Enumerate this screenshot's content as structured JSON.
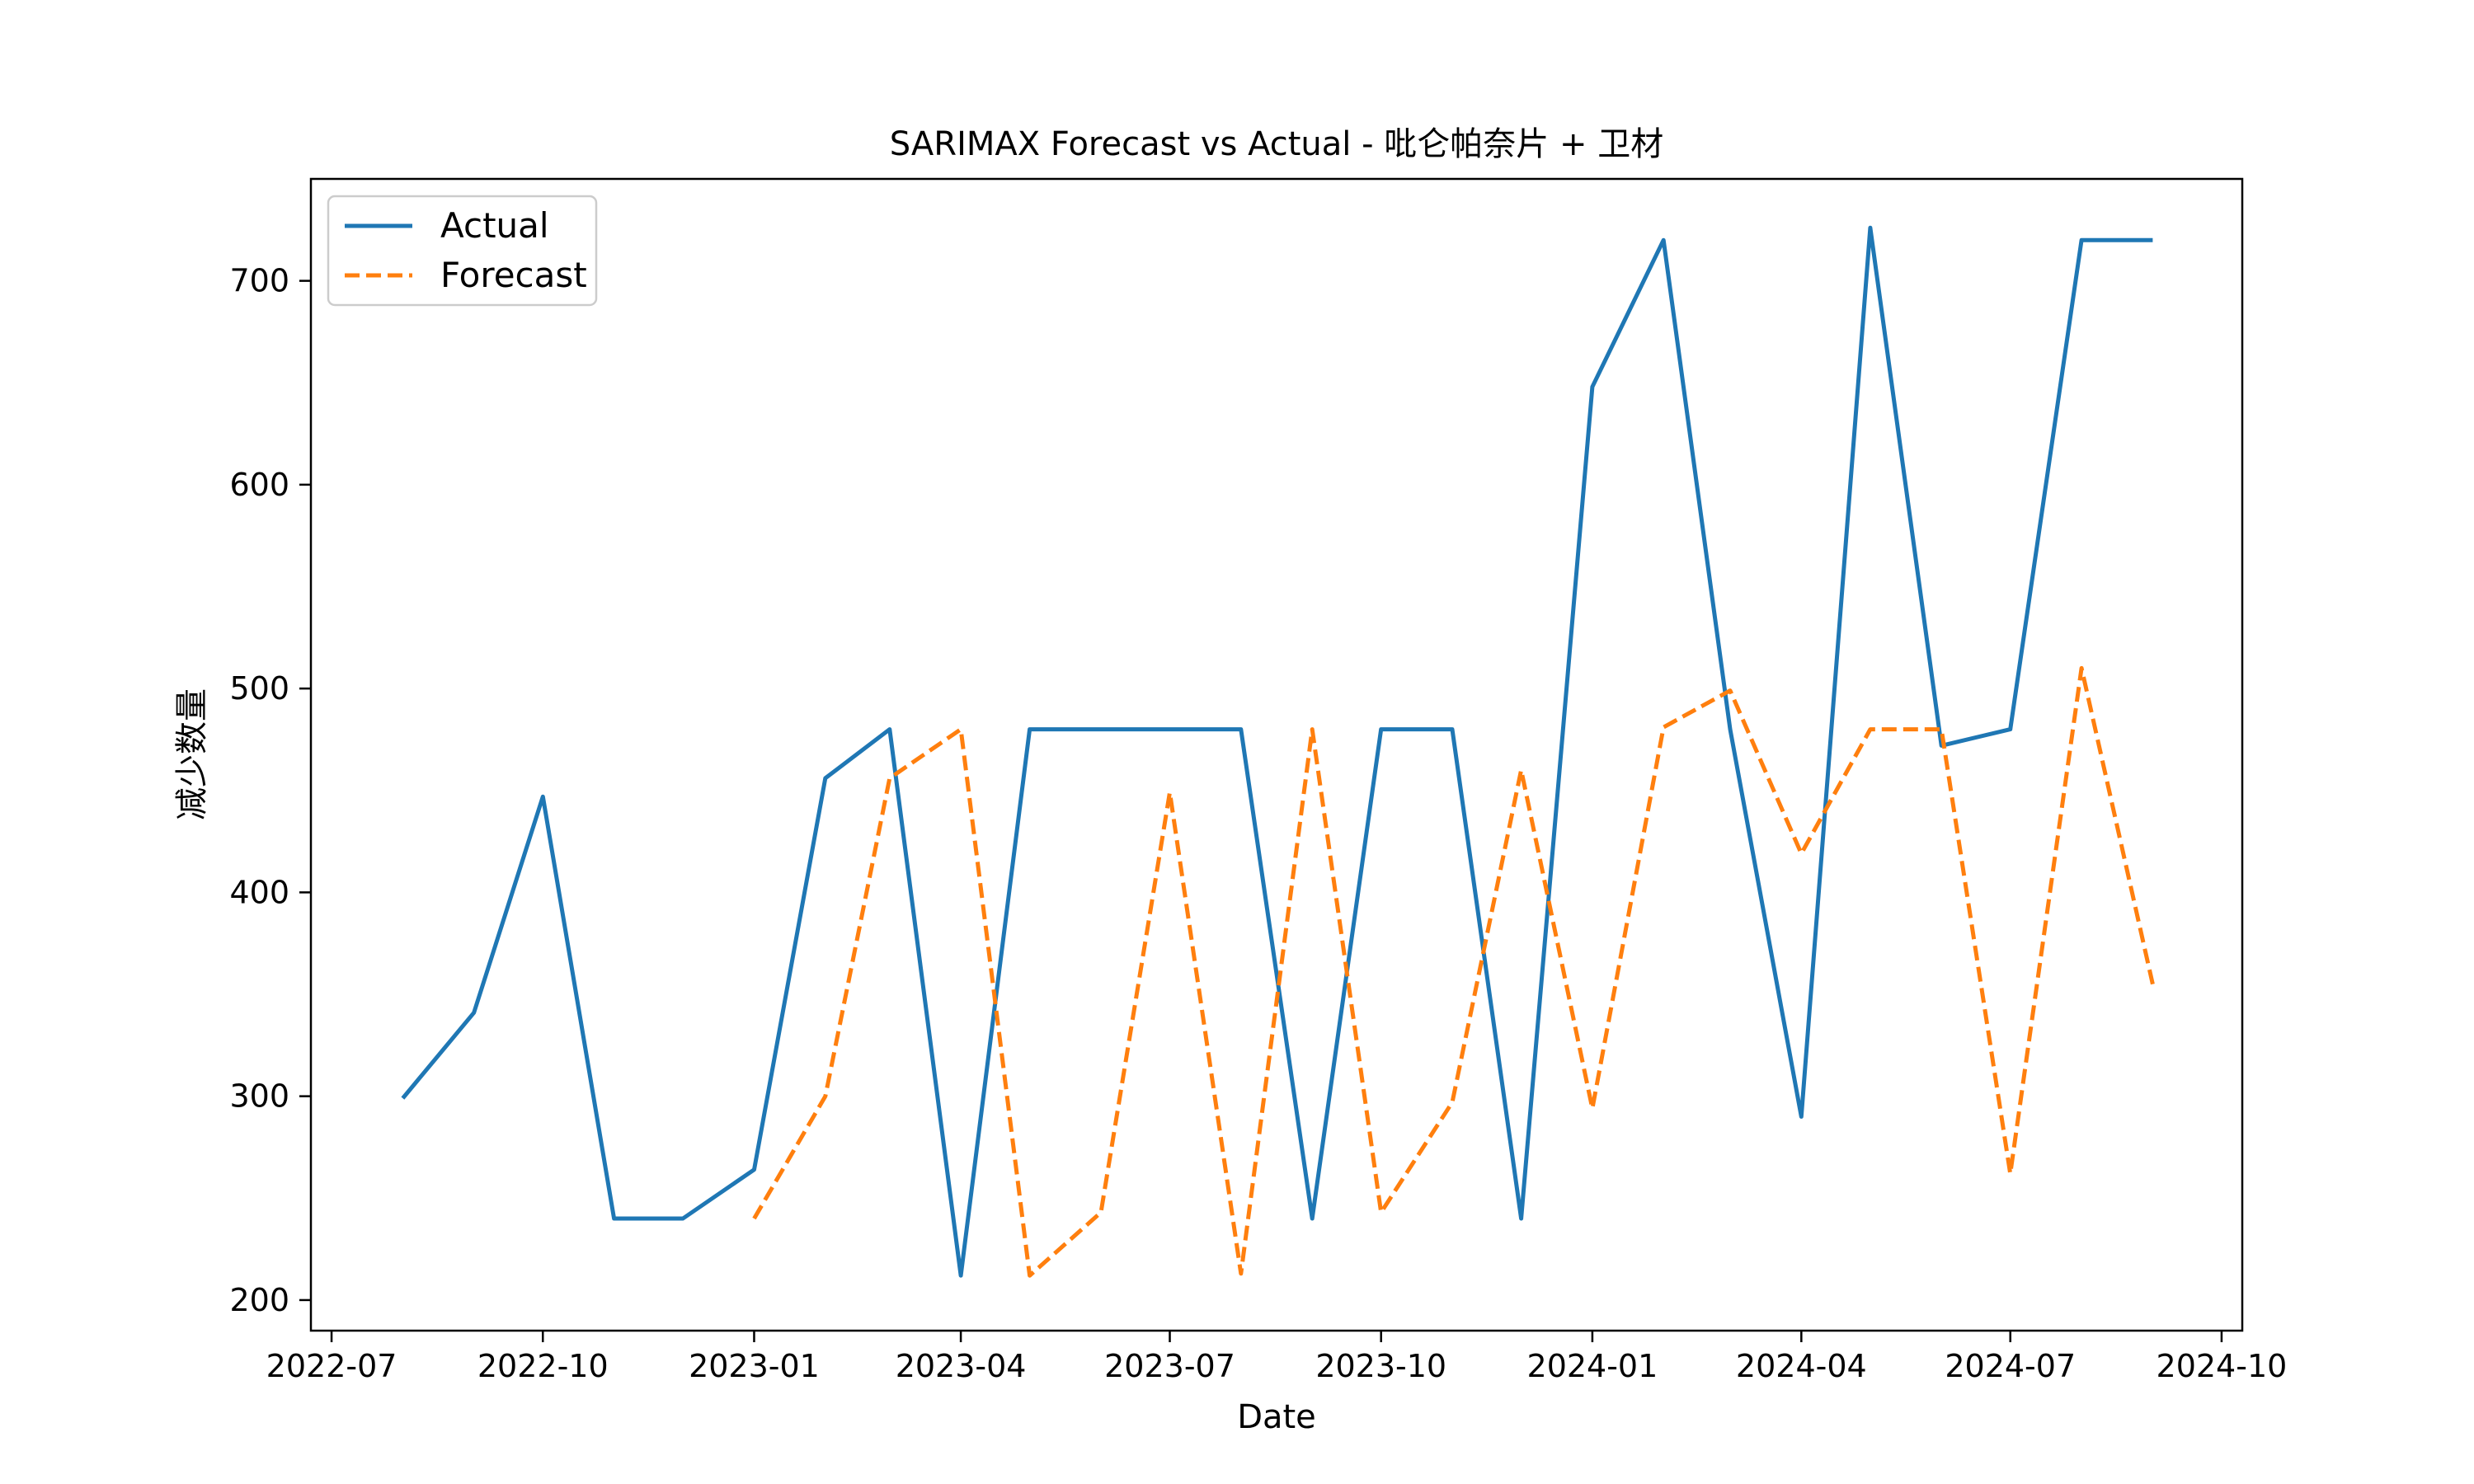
{
  "chart_data": {
    "type": "line",
    "title": "SARIMAX Forecast vs Actual - 吡仑帕奈片 + 卫材",
    "xlabel": "Date",
    "ylabel": "减少数量",
    "x_ticks": [
      "2022-07",
      "2022-10",
      "2023-01",
      "2023-04",
      "2023-07",
      "2023-10",
      "2024-01",
      "2024-04",
      "2024-07",
      "2024-10"
    ],
    "y_ticks": [
      200,
      300,
      400,
      500,
      600,
      700
    ],
    "xlim": [
      "2022-06-22",
      "2024-10-10"
    ],
    "ylim": [
      185,
      750
    ],
    "grid": false,
    "legend_position": "top-left",
    "series": [
      {
        "name": "Actual",
        "color": "#1f77b4",
        "style": "solid",
        "points": [
          [
            "2022-08-01",
            299
          ],
          [
            "2022-09-01",
            341
          ],
          [
            "2022-10-01",
            447
          ],
          [
            "2022-11-01",
            240
          ],
          [
            "2022-12-01",
            240
          ],
          [
            "2023-01-01",
            264
          ],
          [
            "2023-02-01",
            456
          ],
          [
            "2023-03-01",
            480
          ],
          [
            "2023-04-01",
            212
          ],
          [
            "2023-05-01",
            480
          ],
          [
            "2023-06-01",
            480
          ],
          [
            "2023-07-01",
            480
          ],
          [
            "2023-08-01",
            480
          ],
          [
            "2023-09-01",
            240
          ],
          [
            "2023-10-01",
            480
          ],
          [
            "2023-11-01",
            480
          ],
          [
            "2023-12-01",
            240
          ],
          [
            "2024-01-01",
            648
          ],
          [
            "2024-02-01",
            720
          ],
          [
            "2024-03-01",
            480
          ],
          [
            "2024-04-01",
            290
          ],
          [
            "2024-05-01",
            726
          ],
          [
            "2024-06-01",
            472
          ],
          [
            "2024-07-01",
            480
          ],
          [
            "2024-08-01",
            720
          ],
          [
            "2024-09-01",
            720
          ]
        ]
      },
      {
        "name": "Forecast",
        "color": "#ff7f0e",
        "style": "dashed",
        "points": [
          [
            "2023-01-01",
            240
          ],
          [
            "2023-02-01",
            300
          ],
          [
            "2023-03-01",
            456
          ],
          [
            "2023-04-01",
            480
          ],
          [
            "2023-05-01",
            212
          ],
          [
            "2023-06-01",
            243
          ],
          [
            "2023-07-01",
            449
          ],
          [
            "2023-08-01",
            213
          ],
          [
            "2023-09-01",
            480
          ],
          [
            "2023-10-01",
            243
          ],
          [
            "2023-11-01",
            297
          ],
          [
            "2023-12-01",
            460
          ],
          [
            "2024-01-01",
            294
          ],
          [
            "2024-02-01",
            481
          ],
          [
            "2024-03-01",
            499
          ],
          [
            "2024-04-01",
            419
          ],
          [
            "2024-05-01",
            480
          ],
          [
            "2024-06-01",
            480
          ],
          [
            "2024-07-01",
            262
          ],
          [
            "2024-08-01",
            510
          ],
          [
            "2024-09-01",
            355
          ]
        ]
      }
    ]
  }
}
